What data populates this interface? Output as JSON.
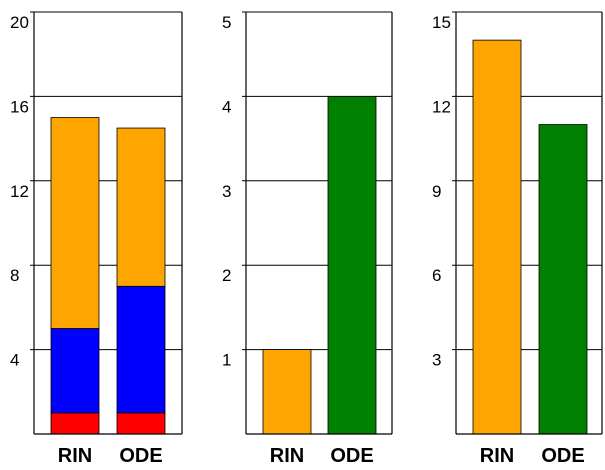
{
  "chart_data": [
    {
      "type": "bar",
      "stacked": true,
      "categories": [
        "RIN",
        "ODE"
      ],
      "ylim": [
        0,
        20
      ],
      "yticks": [
        4,
        8,
        12,
        16,
        20
      ],
      "grid": true,
      "series": [
        {
          "color": "#ff0000",
          "values": [
            1,
            1
          ]
        },
        {
          "color": "#0000ff",
          "values": [
            4,
            6
          ]
        },
        {
          "color": "#ffa500",
          "values": [
            10,
            7.5
          ]
        }
      ]
    },
    {
      "type": "bar",
      "stacked": false,
      "categories": [
        "RIN",
        "ODE"
      ],
      "ylim": [
        0,
        5
      ],
      "yticks": [
        1,
        2,
        3,
        4,
        5
      ],
      "grid": true,
      "values": [
        1,
        4
      ],
      "colors": [
        "#ffa500",
        "#008000"
      ]
    },
    {
      "type": "bar",
      "stacked": false,
      "categories": [
        "RIN",
        "ODE"
      ],
      "ylim": [
        0,
        15
      ],
      "yticks": [
        3,
        6,
        9,
        12,
        15
      ],
      "grid": true,
      "values": [
        14,
        11
      ],
      "colors": [
        "#ffa500",
        "#008000"
      ]
    }
  ]
}
